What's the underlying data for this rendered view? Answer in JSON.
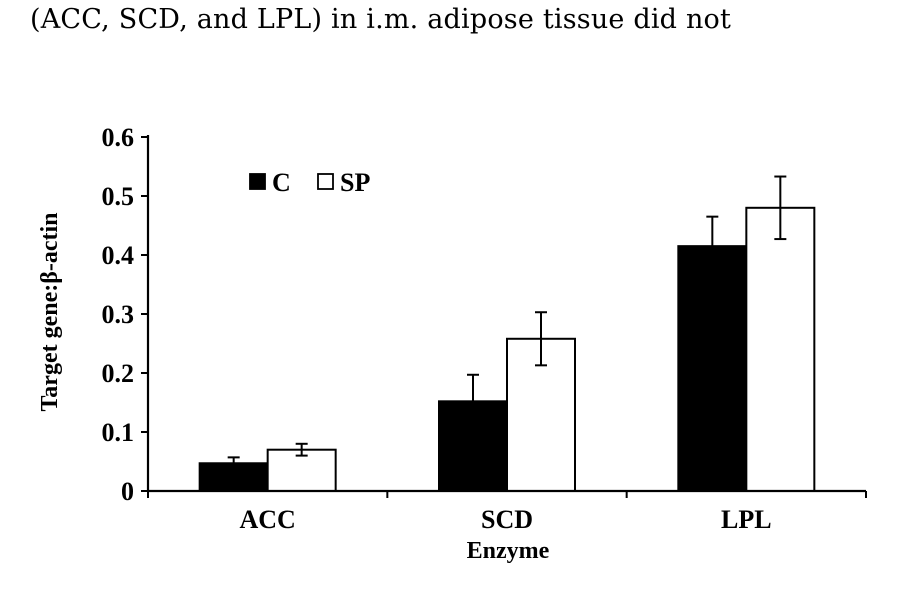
{
  "page": {
    "caption": "(ACC, SCD, and LPL) in i.m. adipose tissue did not"
  },
  "colors": {
    "series_c": "#000000",
    "series_sp": "#ffffff",
    "axis": "#000000"
  },
  "chart_data": {
    "type": "bar",
    "title": "",
    "xlabel": "Enzyme",
    "ylabel": "Target gene:β-actin",
    "ylim": [
      0,
      0.6
    ],
    "yticks": [
      0,
      0.1,
      0.2,
      0.3,
      0.4,
      0.5,
      0.6
    ],
    "ytick_labels": [
      "0",
      "0.1",
      "0.2",
      "0.3",
      "0.4",
      "0.5",
      "0.6"
    ],
    "categories": [
      "ACC",
      "SCD",
      "LPL"
    ],
    "series": [
      {
        "name": "C",
        "values": [
          0.047,
          0.152,
          0.415
        ],
        "errors": [
          0.01,
          0.045,
          0.05
        ]
      },
      {
        "name": "SP",
        "values": [
          0.07,
          0.258,
          0.48
        ],
        "errors": [
          0.01,
          0.045,
          0.053
        ]
      }
    ],
    "legend": {
      "placement": "top-left",
      "labels": [
        "C",
        "SP"
      ]
    },
    "grid": false
  }
}
